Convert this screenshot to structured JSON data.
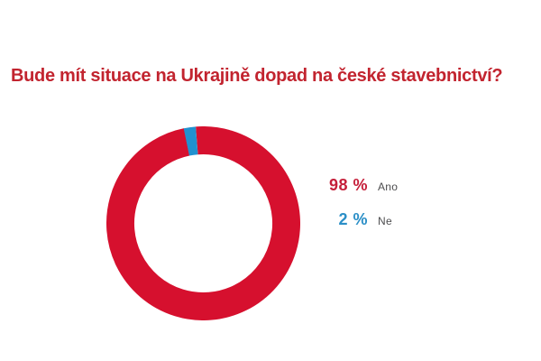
{
  "title_color": "#c2242f",
  "chart_data": {
    "type": "pie",
    "subtype": "donut",
    "title": "Bude mít situace na Ukrajině dopad na české stavebnictví?",
    "categories": [
      "Ano",
      "Ne"
    ],
    "values": [
      98,
      2
    ],
    "unit": "%",
    "colors": [
      "#d6102e",
      "#2191cf"
    ],
    "start_angle_deg": -4.5,
    "donut_hole_ratio": 0.712,
    "legend_position": "right",
    "legend": [
      {
        "value_label": "98 %",
        "label": "Ano",
        "color": "#c51f3a"
      },
      {
        "value_label": "2 %",
        "label": "Ne",
        "color": "#2b8fc7"
      }
    ]
  }
}
